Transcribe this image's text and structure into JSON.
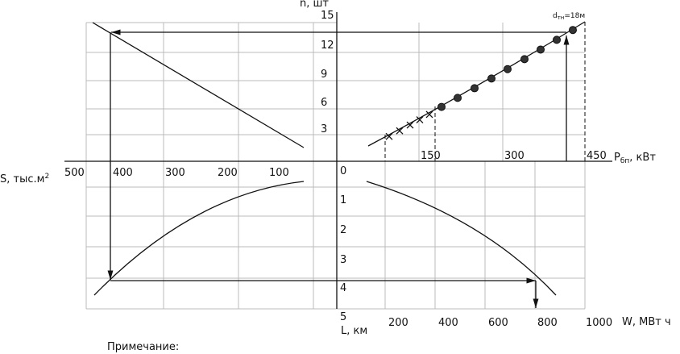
{
  "axes": {
    "n": {
      "label": "n, шт",
      "ticks": [
        "15",
        "12",
        "9",
        "6",
        "3"
      ]
    },
    "p": {
      "label": "P",
      "sub": "бп",
      "unit": ", кВт",
      "ticks": [
        "150",
        "300",
        "450"
      ]
    },
    "s": {
      "label": "S, тыс.м",
      "sup": "2",
      "ticks": [
        "500",
        "400",
        "300",
        "200",
        "100"
      ]
    },
    "l": {
      "label": "L, км",
      "ticks": [
        "0",
        "1",
        "2",
        "3",
        "4",
        "5"
      ]
    },
    "w": {
      "label": "W, МВт ч",
      "ticks": [
        "200",
        "400",
        "600",
        "800",
        "1000"
      ]
    }
  },
  "annotation": {
    "text": "d",
    "sub": "тн",
    "rest": "=18м"
  },
  "note": "Примечание:"
}
